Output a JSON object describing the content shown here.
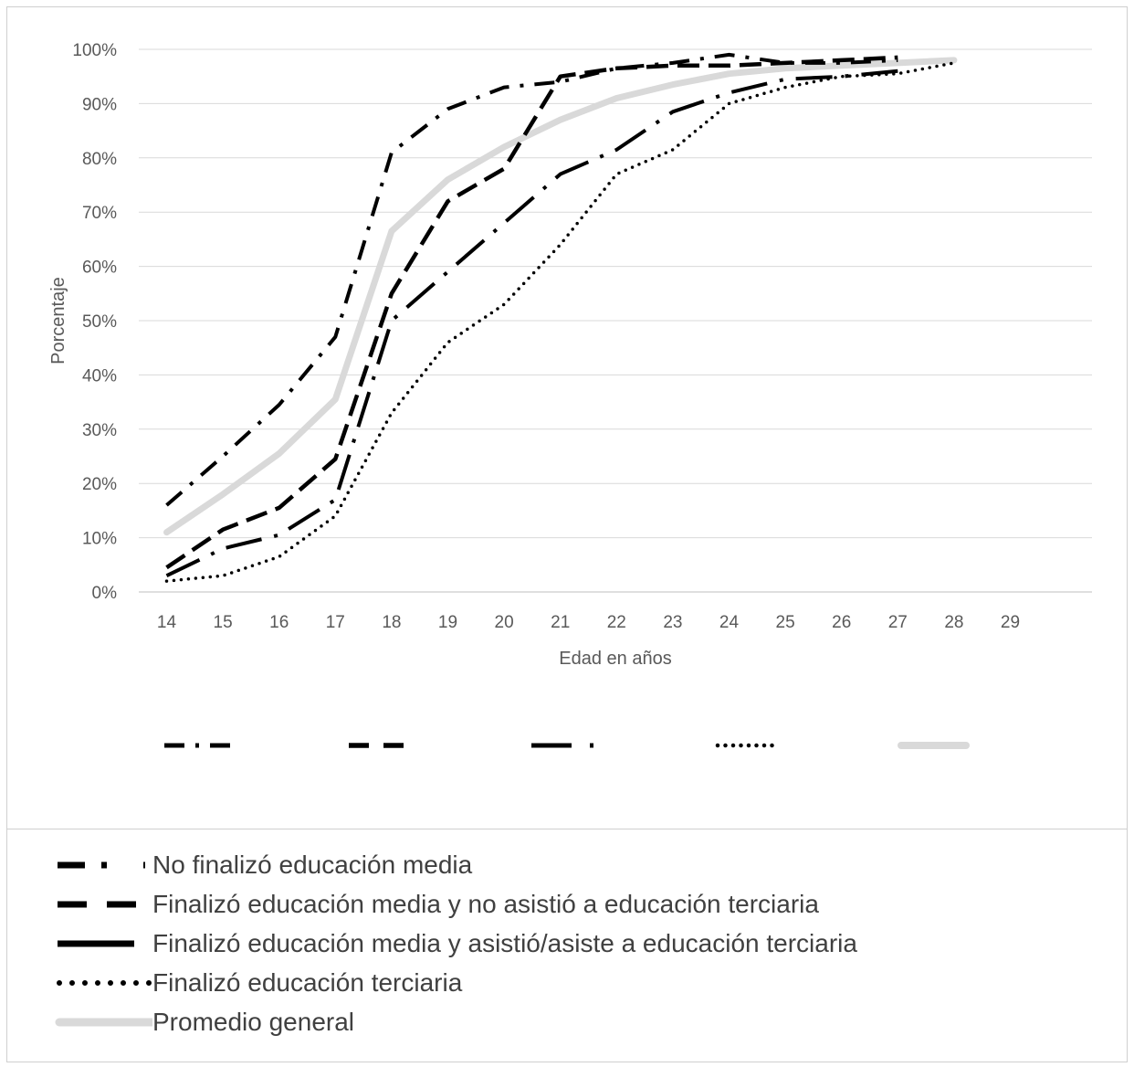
{
  "chart_data": {
    "type": "line",
    "xlabel": "Edad en años",
    "ylabel": "Porcentaje",
    "x_ticks": [
      "14",
      "15",
      "16",
      "17",
      "18",
      "19",
      "20",
      "21",
      "22",
      "23",
      "24",
      "25",
      "26",
      "27",
      "28",
      "29"
    ],
    "y_ticks": [
      "0%",
      "10%",
      "20%",
      "30%",
      "40%",
      "50%",
      "60%",
      "70%",
      "80%",
      "90%",
      "100%"
    ],
    "ylim": [
      0,
      100
    ],
    "grid": true,
    "legend_position": "bottom",
    "series": [
      {
        "name": "No finalizó educación media",
        "style": "dash-dot",
        "color": "#000000",
        "points": [
          [
            14,
            16
          ],
          [
            15,
            25
          ],
          [
            16,
            34.5
          ],
          [
            17,
            47
          ],
          [
            18,
            81
          ],
          [
            19,
            89
          ],
          [
            20,
            93
          ],
          [
            21,
            94
          ],
          [
            22,
            96.5
          ],
          [
            23,
            97.5
          ],
          [
            24,
            99
          ],
          [
            25,
            97.5
          ],
          [
            26,
            97.5
          ],
          [
            27,
            98
          ]
        ]
      },
      {
        "name": "Finalizó educación media y no asistió a educación terciaria",
        "style": "dash",
        "color": "#000000",
        "points": [
          [
            14,
            4.5
          ],
          [
            15,
            11.5
          ],
          [
            16,
            15.5
          ],
          [
            17,
            24.5
          ],
          [
            18,
            55
          ],
          [
            19,
            72
          ],
          [
            20,
            78
          ],
          [
            21,
            95
          ],
          [
            22,
            96.5
          ],
          [
            23,
            97
          ],
          [
            24,
            97
          ],
          [
            25,
            97.5
          ],
          [
            26,
            98
          ],
          [
            27,
            98.5
          ]
        ]
      },
      {
        "name": "Finalizó educación media y asistió/asiste a educación terciaria",
        "style": "long-dash-dot",
        "color": "#000000",
        "points": [
          [
            14,
            3
          ],
          [
            15,
            8
          ],
          [
            16,
            10.5
          ],
          [
            17,
            17
          ],
          [
            18,
            50
          ],
          [
            19,
            59
          ],
          [
            20,
            68
          ],
          [
            21,
            77
          ],
          [
            22,
            81.5
          ],
          [
            23,
            88.5
          ],
          [
            24,
            92
          ],
          [
            25,
            94.5
          ],
          [
            26,
            95
          ],
          [
            27,
            96
          ]
        ]
      },
      {
        "name": "Finalizó educación terciaria",
        "style": "dotted",
        "color": "#000000",
        "points": [
          [
            14,
            2
          ],
          [
            15,
            3
          ],
          [
            16,
            6.5
          ],
          [
            17,
            14
          ],
          [
            18,
            33
          ],
          [
            19,
            46
          ],
          [
            20,
            53
          ],
          [
            21,
            64
          ],
          [
            22,
            77
          ],
          [
            23,
            81.5
          ],
          [
            24,
            90
          ],
          [
            25,
            93
          ],
          [
            26,
            95
          ],
          [
            27,
            95.5
          ],
          [
            28,
            97.5
          ]
        ]
      },
      {
        "name": "Promedio general",
        "style": "solid-thick",
        "color": "#d9d9d9",
        "points": [
          [
            14,
            11
          ],
          [
            15,
            18
          ],
          [
            16,
            25.5
          ],
          [
            17,
            35.5
          ],
          [
            18,
            66.5
          ],
          [
            19,
            76
          ],
          [
            20,
            82
          ],
          [
            21,
            87
          ],
          [
            22,
            91
          ],
          [
            23,
            93.5
          ],
          [
            24,
            95.5
          ],
          [
            25,
            96.5
          ],
          [
            26,
            97
          ],
          [
            27,
            97.5
          ],
          [
            28,
            98
          ]
        ]
      }
    ]
  }
}
